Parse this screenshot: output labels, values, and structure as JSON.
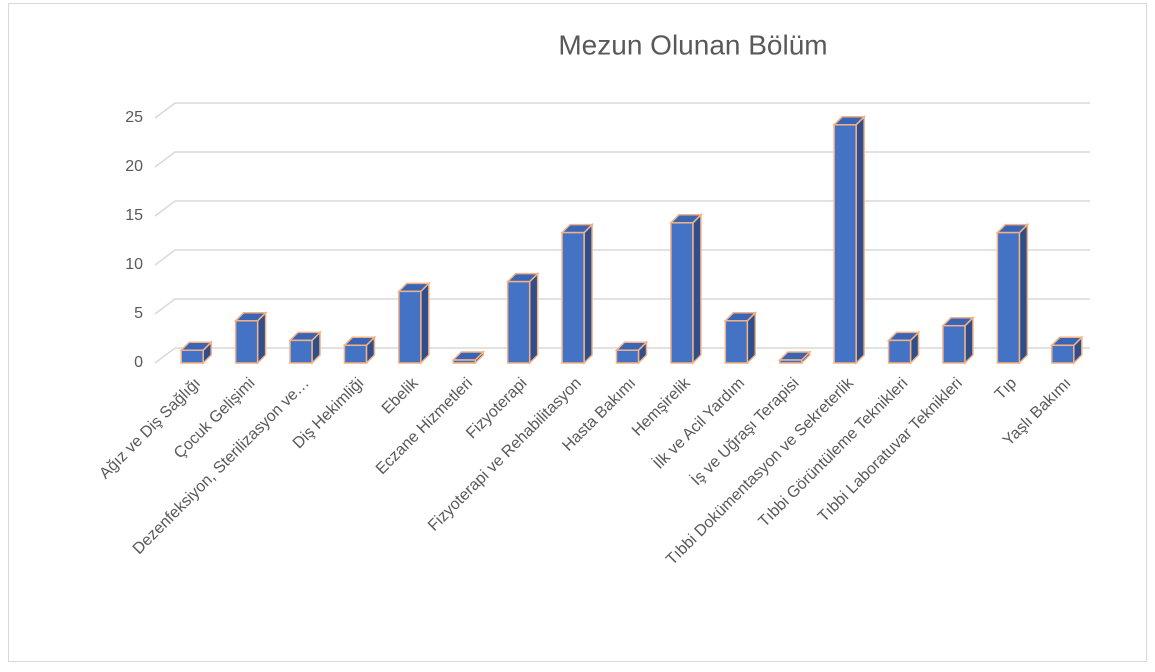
{
  "chart_data": {
    "type": "bar3d",
    "title": "Mezun Olunan Bölüm",
    "categories": [
      "Ağız ve Diş Sağlığı",
      "Çocuk Gelişimi",
      "Dezenfeksiyon, Sterilizasyon ve…",
      "Diş Hekimliği",
      "Ebelik",
      "Eczane Hizmetleri",
      "Fizyoterapi",
      "Fizyoterapi ve Rehabilitasyon",
      "Hasta Bakımı",
      "Hemşirelik",
      "İlk ve Acil Yardım",
      "İş ve Uğraşı Terapisi",
      "Tıbbi Dokümentasyon ve Sekreterlik",
      "Tıbbi Görüntüleme Teknikleri",
      "Tıbbi Laboratuvar Teknikleri",
      "Tıp",
      "Yaşlı Bakımı"
    ],
    "values": [
      1,
      4,
      2,
      1.5,
      7,
      0,
      8,
      13,
      1,
      14,
      4,
      0,
      24,
      2,
      3.5,
      13,
      1.5
    ],
    "color": "#4472c4",
    "edge_color": "#f4b183",
    "ylim": [
      0,
      25
    ],
    "yticks": [
      0,
      5,
      10,
      15,
      20,
      25
    ],
    "grid": true
  }
}
